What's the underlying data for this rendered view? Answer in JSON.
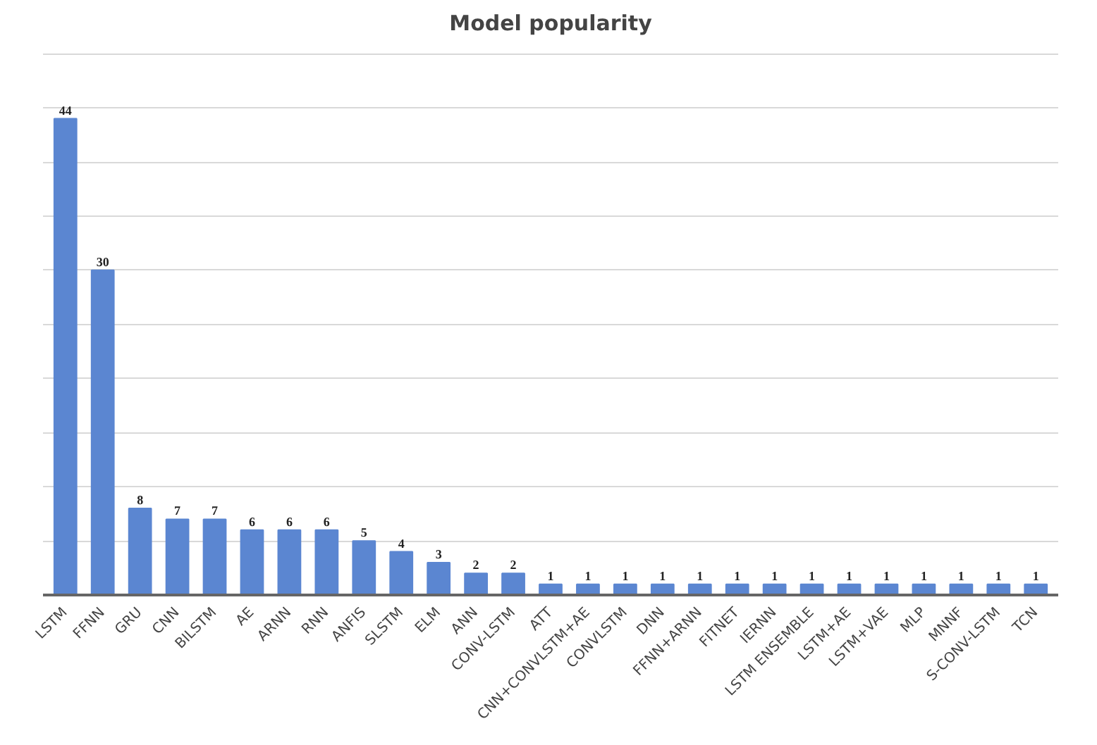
{
  "chart_data": {
    "type": "bar",
    "title": "Model popularity",
    "categories": [
      "LSTM",
      "FFNN",
      "GRU",
      "CNN",
      "BILSTM",
      "AE",
      "ARNN",
      "RNN",
      "ANFIS",
      "SLSTM",
      "ELM",
      "ANN",
      "CONV-LSTM",
      "ATT",
      "CNN+CONVLSTM+AE",
      "CONVLSTM",
      "DNN",
      "FFNN+ARNN",
      "FITNET",
      "IERNN",
      "LSTM ENSEMBLE",
      "LSTM+AE",
      "LSTM+VAE",
      "MLP",
      "MNNF",
      "S-CONV-LSTM",
      "TCN"
    ],
    "values": [
      44,
      30,
      8,
      7,
      7,
      6,
      6,
      6,
      5,
      4,
      3,
      2,
      2,
      1,
      1,
      1,
      1,
      1,
      1,
      1,
      1,
      1,
      1,
      1,
      1,
      1,
      1
    ],
    "color": "#5b86d1",
    "yticks": [
      {
        "value": 0,
        "label": null
      },
      {
        "value": 5,
        "label": null
      },
      {
        "value": 10,
        "label": null
      },
      {
        "value": 15,
        "label": null
      },
      {
        "value": 20,
        "label": null
      },
      {
        "value": 25,
        "label": null
      },
      {
        "value": 30,
        "label": null
      },
      {
        "value": 35,
        "label": null
      },
      {
        "value": 40,
        "label": null
      },
      {
        "value": 45,
        "label": null
      },
      {
        "value": 50,
        "label": null
      }
    ],
    "tick_labels": "x",
    "grid": "y",
    "data_labels": true
  }
}
